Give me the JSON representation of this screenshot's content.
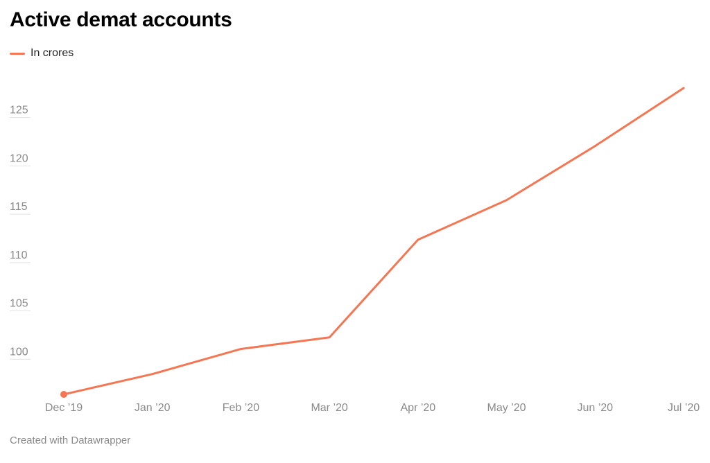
{
  "colors": {
    "series": "#f47652",
    "grid": "#e2e2e2",
    "axis_text": "#8a8a8a"
  },
  "legend": {
    "label": "In crores"
  },
  "footer": {
    "credit": "Created with Datawrapper"
  },
  "chart_data": {
    "type": "line",
    "title": "Active demat accounts",
    "xlabel": "",
    "ylabel": "",
    "categories": [
      "Dec ’19",
      "Jan ’20",
      "Feb ’20",
      "Mar ’20",
      "Apr ’20",
      "May ’20",
      "Jun ’20",
      "Jul ’20"
    ],
    "series": [
      {
        "name": "In crores",
        "values": [
          95.5,
          97.6,
          100.2,
          101.4,
          111.5,
          115.6,
          121.2,
          127.2
        ]
      }
    ],
    "y_ticks": [
      100,
      105,
      110,
      115,
      120,
      125
    ],
    "ylim": [
      95.5,
      127.2
    ],
    "grid": true,
    "legend_position": "top-left",
    "marker_at_start": true
  }
}
